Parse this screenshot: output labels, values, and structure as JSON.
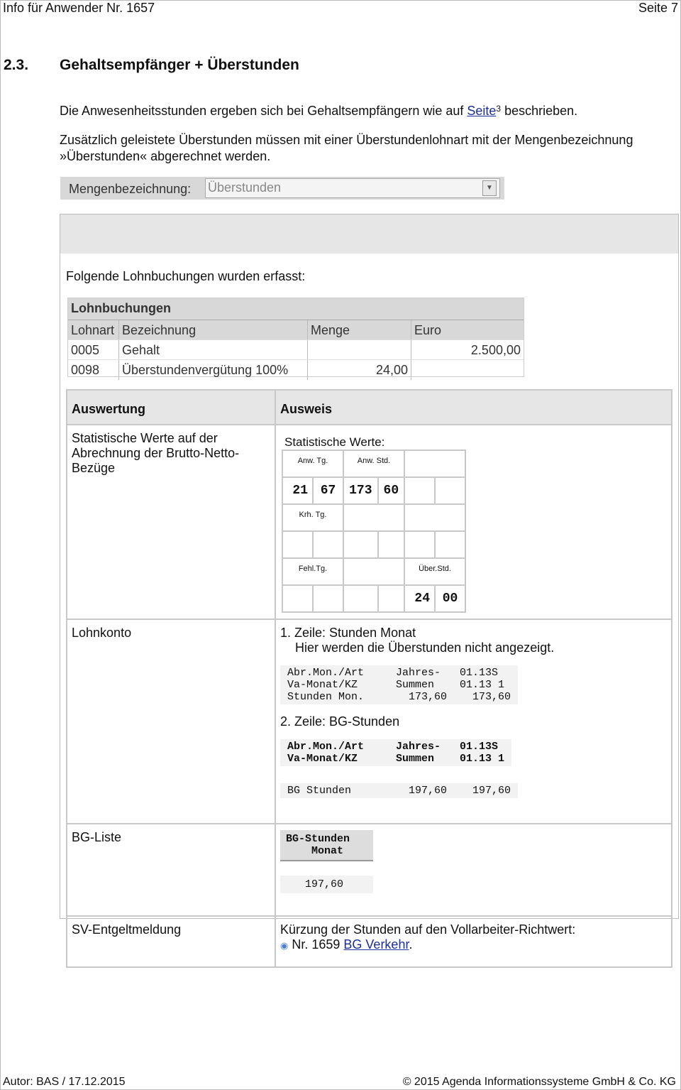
{
  "header": {
    "left": "Info für Anwender Nr. 1657",
    "right": "Seite 7"
  },
  "section": {
    "number": "2.3.",
    "title": "Gehaltsempfänger + Überstunden"
  },
  "para1": {
    "before": "Die Anwesenheitsstunden ergeben sich bei Gehaltsempfängern wie auf ",
    "link": "Seite",
    "ref": "3",
    "after": " beschrieben."
  },
  "para2": {
    "line1": "Zusätzlich geleistete Überstunden müssen mit einer Überstundenlohnart mit der Mengenbezeichnung",
    "line2": "»Überstunden« abgerechnet werden."
  },
  "mengen": {
    "label": "Mengenbezeichnung:",
    "value": "Überstunden"
  },
  "intro": "Folgende Lohnbuchungen wurden erfasst:",
  "lohnbuchungen": {
    "title": "Lohnbuchungen",
    "columns": [
      "Lohnart",
      "Bezeichnung",
      "Menge",
      "Euro"
    ],
    "rows": [
      [
        "0005",
        "Gehalt",
        "",
        "2.500,00"
      ],
      [
        "0098",
        "Überstundenvergütung 100%",
        "24,00",
        ""
      ]
    ]
  },
  "auswertung": {
    "col1": "Auswertung",
    "col2": "Ausweis",
    "row1": {
      "label": "Statistische Werte auf der Abrechnung der Brutto-Netto-Bezüge",
      "sw_title": "Statistische Werte:",
      "anw_tg": "Anw. Tg.",
      "anw_tg_a": "21",
      "anw_tg_b": "67",
      "anw_std": "Anw. Std.",
      "anw_std_a": "173",
      "anw_std_b": "60",
      "krh": "Krh. Tg.",
      "fehl": "Fehl.Tg.",
      "ueber": "Über.Std.",
      "ueber_a": "24",
      "ueber_b": "00"
    },
    "row2": {
      "label": "Lohnkonto",
      "z1": "1. Zeile: Stunden Monat",
      "z1b": "Hier werden die Überstunden nicht angezeigt.",
      "m1": "Abr.Mon./Art     Jahres-   01.13S\nVa-Monat/KZ      Summen    01.13 1\nStunden Mon.       173,60    173,60",
      "z2": "2. Zeile: BG-Stunden",
      "m2": "Abr.Mon./Art     Jahres-   01.13S\nVa-Monat/KZ      Summen    01.13 1",
      "m3": "BG Stunden         197,60    197,60"
    },
    "row3": {
      "label": "BG-Liste",
      "h": "BG-Stunden\n    Monat",
      "v": "   197,60"
    },
    "row4": {
      "label": "SV-Entgeltmeldung",
      "text": "Kürzung der Stunden auf den Vollarbeiter-Richtwert:",
      "nr": "Nr. 1659 ",
      "link": "BG Verkehr",
      "end": "."
    }
  },
  "footer": {
    "left": "Autor: BAS / 17.12.2015",
    "right": "© 2015 Agenda Informationssysteme GmbH & Co. KG"
  }
}
